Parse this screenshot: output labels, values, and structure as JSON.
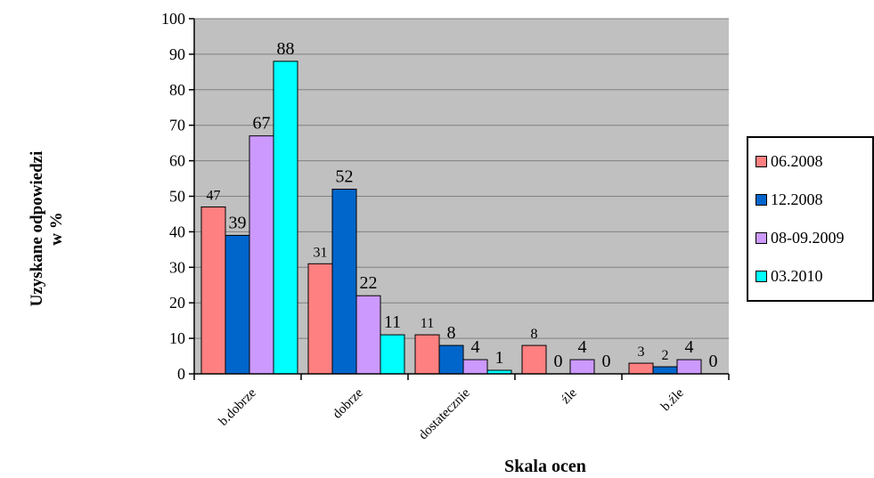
{
  "chart_data": {
    "type": "bar",
    "title": "",
    "xlabel": "Skala ocen",
    "ylabel_lines": [
      "Uzyskane odpowiedzi",
      "w %"
    ],
    "ylim": [
      0,
      100
    ],
    "yticks": [
      0,
      10,
      20,
      30,
      40,
      50,
      60,
      70,
      80,
      90,
      100
    ],
    "grid": true,
    "plot_background": "#c0c0c0",
    "legend_position": "right",
    "categories": [
      "b.dobrze",
      "dobrze",
      "dostatecznie",
      "źle",
      "b.źle"
    ],
    "series": [
      {
        "name": "06.2008",
        "color": "#ff8080",
        "values": [
          47,
          31,
          11,
          8,
          3
        ]
      },
      {
        "name": "12.2008",
        "color": "#0066cc",
        "values": [
          39,
          52,
          8,
          0,
          2
        ]
      },
      {
        "name": "08-09.2009",
        "color": "#cc99ff",
        "values": [
          67,
          22,
          4,
          4,
          4
        ]
      },
      {
        "name": "03.2010",
        "color": "#00ffff",
        "values": [
          88,
          11,
          1,
          0,
          0
        ]
      }
    ]
  }
}
